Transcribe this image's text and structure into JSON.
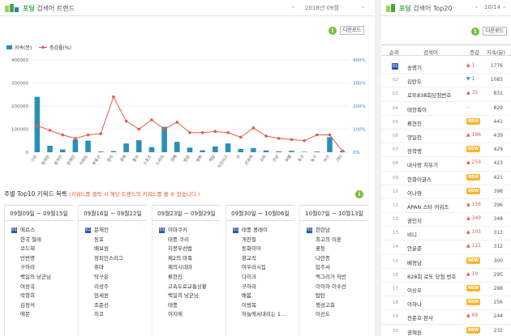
{
  "left_header": {
    "brand": "포딩",
    "title": "검색어 트랜드",
    "period": "2018년 09월",
    "prev": "‹",
    "next": "›"
  },
  "right_header": {
    "brand": "포딩",
    "title": "검색어 Top20",
    "page": "10/14",
    "prev": "‹",
    "next": "›"
  },
  "download_label": "다운로드",
  "info_label": "i",
  "chart_data": {
    "type": "bar+line",
    "legend": [
      "지속(분)",
      "증감률(%)"
    ],
    "categories": [
      "스타",
      "정치민",
      "정치인",
      "문재인",
      "아파트",
      "부동산",
      "정치",
      "경제",
      "증시",
      "스포츠",
      "드라마",
      "연예",
      "방송",
      "영화",
      "게임",
      "사건사고",
      "IT",
      "IT과학",
      "교육",
      "건강",
      "여행",
      "축구",
      "농구",
      "야구",
      "기타"
    ],
    "bar_values": [
      240000,
      28000,
      12000,
      55000,
      50000,
      3000,
      5000,
      38000,
      52000,
      22000,
      110000,
      45000,
      20000,
      8000,
      25000,
      38000,
      14000,
      18000,
      8000,
      4000,
      6000,
      2000,
      3000,
      65000,
      5000
    ],
    "line_values": [
      115,
      95,
      75,
      60,
      75,
      80,
      240,
      135,
      100,
      140,
      100,
      130,
      85,
      85,
      90,
      85,
      65,
      105,
      70,
      60,
      55,
      50,
      75,
      75,
      5
    ],
    "ylim_left": [
      0,
      400000
    ],
    "ylim_right": [
      0,
      400
    ],
    "yticks_left": [
      "400000",
      "300000",
      "200000",
      "100000",
      "0"
    ],
    "yticks_right": [
      "400%",
      "300%",
      "200%",
      "100%",
      "0%"
    ],
    "bar_color": "#2a8fb8",
    "line_color": "#e35b4a",
    "grid": true
  },
  "weekly": {
    "title": "주별 Top10 키워드 목록",
    "note": "(키워드를 클릭 시 해당 트랜드의 키워드를 볼 수 있습니다.)",
    "columns": [
      {
        "range": "09월09일 ~ 09월15일",
        "items": [
          "에르스",
          "한국 철레",
          "코드제",
          "빈번명",
          "구하라",
          "백일의 낭군님",
          "여성국",
          "박형희",
          "김정석",
          "에몬"
        ]
      },
      {
        "range": "09월16일 ~ 09월22일",
        "items": [
          "문재인",
          "동포",
          "배보원",
          "정피민스리그",
          "퓨마",
          "탁구온",
          "리성주",
          "임세원",
          "조준선",
          "지코"
        ]
      },
      {
        "range": "09월23일 ~ 09월29일",
        "items": [
          "이마쿠키",
          "태풍 쿠리",
          "지봉우선법",
          "제2의 마족",
          "폐의시네마",
          "류현진",
          "고속도로교통상황",
          "백일의 낭군님",
          "태풍",
          "이지애"
        ]
      },
      {
        "range": "09월30일 ~ 10월06일",
        "items": [
          "태풍 콩레이",
          "개천절",
          "동화이어",
          "항교직",
          "여우라시집",
          "다이크",
          "구하라",
          "배봄",
          "이쌍목",
          "하늘에서내리는 1..."
        ]
      },
      {
        "range": "10월07일 ~ 10월13일",
        "items": [
          "한란남",
          "최고의 이혼",
          "꽃동",
          "나만종",
          "입주서",
          "맥그리거 하빈",
          "이이하 이수선",
          "탑탄",
          "행성고회",
          "이선도"
        ]
      }
    ]
  },
  "top20": {
    "headers": {
      "rank": "순위",
      "keyword": "검색어",
      "change": "증감",
      "index": "지속(분)"
    },
    "rows": [
      {
        "rank": "01",
        "keyword": "송명기",
        "change": "1",
        "dir": "up",
        "index": "1776"
      },
      {
        "rank": "02",
        "keyword": "김탄도",
        "change": "1",
        "dir": "down",
        "index": "1083"
      },
      {
        "rank": "03",
        "keyword": "로또838회당첨번호",
        "change": "35",
        "dir": "up",
        "index": "831"
      },
      {
        "rank": "04",
        "keyword": "태양족이",
        "change": "--",
        "dir": "none",
        "index": "829"
      },
      {
        "rank": "05",
        "keyword": "류현진",
        "change": "NEW",
        "dir": "new",
        "index": "441"
      },
      {
        "rank": "06",
        "keyword": "양일천",
        "change": "186",
        "dir": "up",
        "index": "439"
      },
      {
        "rank": "07",
        "keyword": "장학명",
        "change": "NEW",
        "dir": "new",
        "index": "429"
      },
      {
        "rank": "08",
        "keyword": "내사랑 치유기",
        "change": "259",
        "dir": "up",
        "index": "423"
      },
      {
        "rank": "09",
        "keyword": "한화이글스",
        "change": "NEW",
        "dir": "new",
        "index": "421"
      },
      {
        "rank": "10",
        "keyword": "이나영",
        "change": "NEW",
        "dir": "new",
        "index": "398"
      },
      {
        "rank": "11",
        "keyword": "APAN 스타 어워즈",
        "change": "156",
        "dir": "up",
        "index": "396"
      },
      {
        "rank": "12",
        "keyword": "권인지",
        "change": "349",
        "dir": "up",
        "index": "348"
      },
      {
        "rank": "13",
        "keyword": "비니",
        "change": "103",
        "dir": "up",
        "index": "313"
      },
      {
        "rank": "14",
        "keyword": "안윤준",
        "change": "121",
        "dir": "up",
        "index": "312"
      },
      {
        "rank": "15",
        "keyword": "베정남",
        "change": "NEW",
        "dir": "new",
        "index": "300"
      },
      {
        "rank": "16",
        "keyword": "828회 로또 당첨 번호",
        "change": "19",
        "dir": "up",
        "index": "295"
      },
      {
        "rank": "17",
        "keyword": "이상우",
        "change": "NEW",
        "dir": "new",
        "index": "288"
      },
      {
        "rank": "18",
        "keyword": "이하나",
        "change": "NEW",
        "dir": "new",
        "index": "256"
      },
      {
        "rank": "19",
        "keyword": "전준호 판사",
        "change": "99",
        "dir": "up",
        "index": "244"
      },
      {
        "rank": "20",
        "keyword": "권혜원",
        "change": "NEW",
        "dir": "new",
        "index": "232"
      }
    ]
  }
}
